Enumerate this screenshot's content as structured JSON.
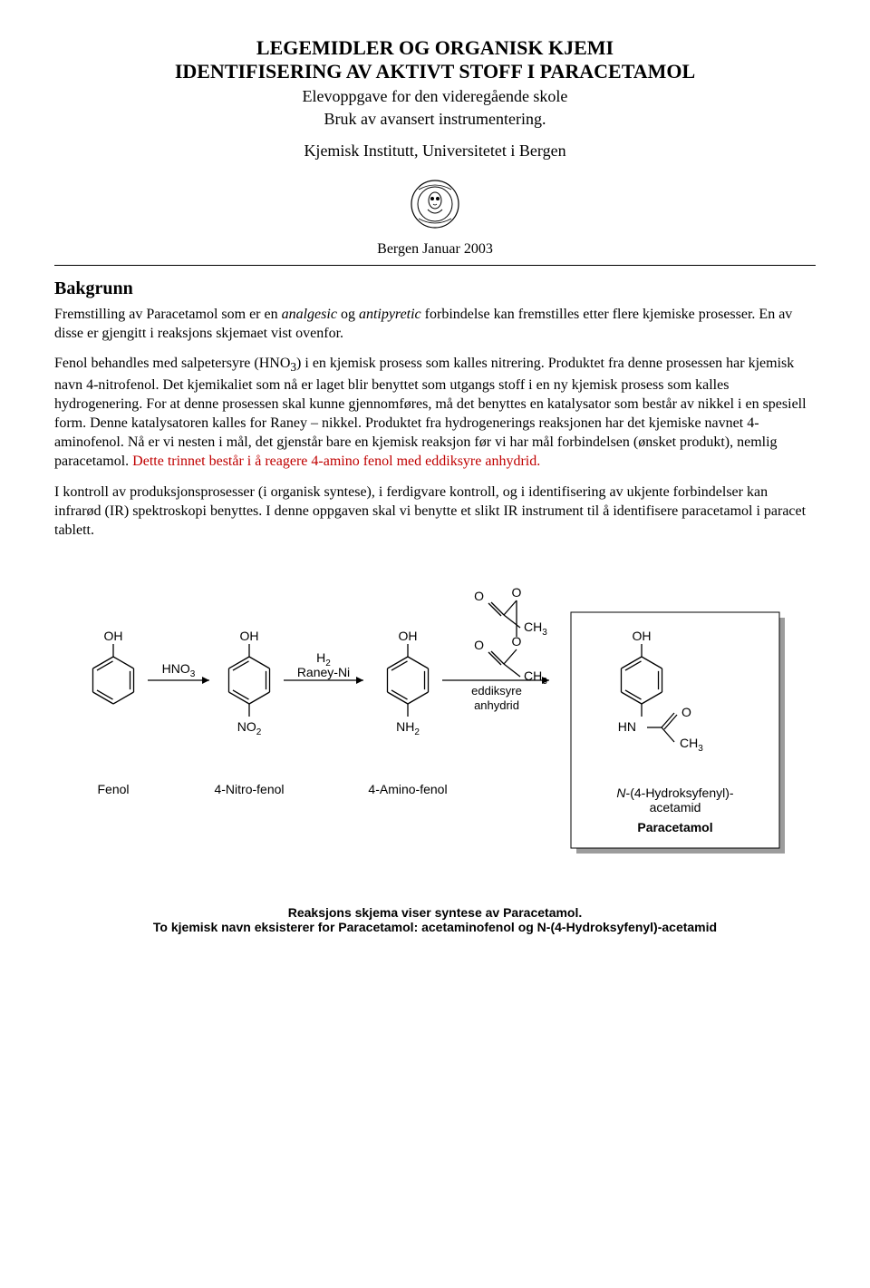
{
  "title": {
    "line1": "LEGEMIDLER OG ORGANISK KJEMI",
    "line2": "IDENTIFISERING AV AKTIVT STOFF I PARACETAMOL",
    "sub1": "Elevoppgave for den videregående skole",
    "sub2": "Bruk av avansert instrumentering.",
    "institution": "Kjemisk Institutt, Universitetet i Bergen",
    "date": "Bergen Januar 2003"
  },
  "section_bakgrunn": "Bakgrunn",
  "para1_a": "Fremstilling av Paracetamol som er en ",
  "para1_i1": "analgesic",
  "para1_b": " og ",
  "para1_i2": "antipyretic",
  "para1_c": " forbindelse kan fremstilles etter flere kjemiske prosesser. En av disse er gjengitt i reaksjons skjemaet vist ovenfor.",
  "para2_a": "Fenol behandles med salpetersyre (HNO",
  "para2_sub1": "3",
  "para2_b": ") i en kjemisk prosess som kalles nitrering. Produktet fra denne prosessen har kjemisk navn 4-nitrofenol. Det kjemikaliet som nå er laget blir benyttet som utgangs stoff i en ny kjemisk prosess som kalles hydrogenering. For at denne prosessen skal kunne gjennomføres, må det benyttes en katalysator som består av nikkel i en spesiell form. Denne katalysatoren kalles for Raney – nikkel. Produktet fra hydrogenerings reaksjonen har det kjemiske navnet 4-aminofenol. Nå er vi nesten i mål, det gjenstår bare en kjemisk reaksjon før vi har mål forbindelsen (ønsket produkt), nemlig paracetamol. ",
  "para2_red": "Dette trinnet består i å reagere 4-amino fenol med eddiksyre anhydrid.",
  "para3": "I kontroll av produksjonsprosesser (i organisk syntese), i ferdigvare kontroll, og i identifisering av ukjente forbindelser kan infrarød (IR) spektroskopi benyttes. I denne oppgaven skal vi benytte et slikt IR instrument til å identifisere paracetamol i paracet tablett.",
  "scheme": {
    "reagents": {
      "r1": "HNO",
      "r1_sub": "3",
      "r2a": "H",
      "r2a_sub": "2",
      "r2b": "Raney-Ni",
      "r3a": "eddiksyre",
      "r3b": "anhydrid"
    },
    "labels": {
      "oh": "OH",
      "no2": "NO",
      "no2_sub": "2",
      "nh2": "NH",
      "nh2_sub": "2",
      "hn": "HN",
      "o": "O",
      "ch3": "CH",
      "ch3_sub": "3",
      "fenol": "Fenol",
      "nitro": "4-Nitro-fenol",
      "amino": "4-Amino-fenol",
      "iupac_a": "N",
      "iupac_b": "-(4-Hydroksyfenyl)-",
      "iupac_c": "acetamid",
      "paracetamol": "Paracetamol"
    },
    "colors": {
      "stroke": "#000000",
      "text": "#000000",
      "box_fill": "#ffffff",
      "box_shadow": "#9c9c9c"
    },
    "style": {
      "line_width": 1.3,
      "font_family_chem": "Arial, Helvetica, sans-serif",
      "font_size_atom": 14,
      "font_size_sub": 10,
      "font_size_label": 14
    }
  },
  "caption1": "Reaksjons skjema viser syntese av Paracetamol.",
  "caption2": "To kjemisk navn eksisterer for Paracetamol: acetaminofenol og  N-(4-Hydroksyfenyl)-acetamid"
}
